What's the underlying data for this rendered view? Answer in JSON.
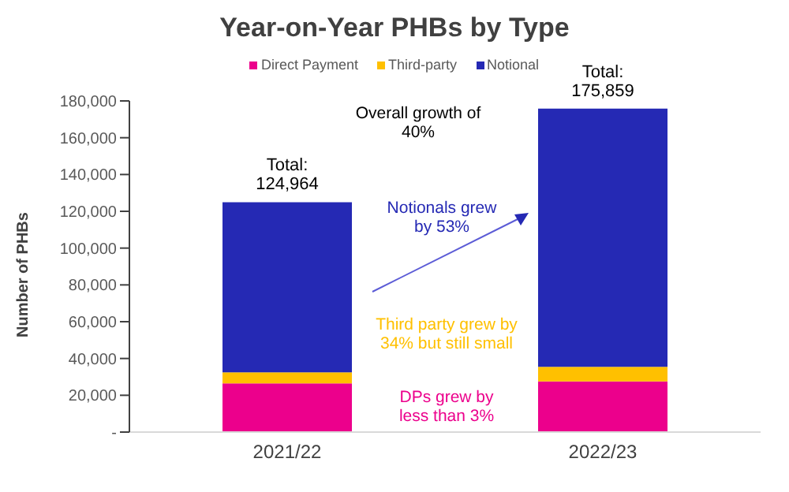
{
  "chart_data": {
    "type": "bar",
    "title": "Year-on-Year PHBs by Type",
    "categories": [
      "2021/22",
      "2022/23"
    ],
    "stacked": true,
    "series": [
      {
        "name": "Direct Payment",
        "color": "#ec008c",
        "values": [
          26500,
          27500
        ]
      },
      {
        "name": "Third-party",
        "color": "#ffc000",
        "values": [
          6000,
          8000
        ]
      },
      {
        "name": "Notional",
        "color": "#2529b4",
        "values": [
          92464,
          140359
        ]
      }
    ],
    "ylabel": "Number of PHBs",
    "ylim": [
      0,
      180000
    ],
    "yticks": [
      {
        "value": 0,
        "label": "-"
      },
      {
        "value": 20000,
        "label": "20,000"
      },
      {
        "value": 40000,
        "label": "40,000"
      },
      {
        "value": 60000,
        "label": "60,000"
      },
      {
        "value": 80000,
        "label": "80,000"
      },
      {
        "value": 100000,
        "label": "100,000"
      },
      {
        "value": 120000,
        "label": "120,000"
      },
      {
        "value": 140000,
        "label": "140,000"
      },
      {
        "value": 160000,
        "label": "160,000"
      },
      {
        "value": 180000,
        "label": "180,000"
      }
    ],
    "totals": [
      "Total: 124,964",
      "Total: 175,859"
    ],
    "annotations": [
      "Overall growth of 40%",
      "Notionals grew by 53%",
      "Third party grew by 34% but still small",
      "DPs grew by less than 3%"
    ],
    "legend": "top",
    "grid": false
  }
}
